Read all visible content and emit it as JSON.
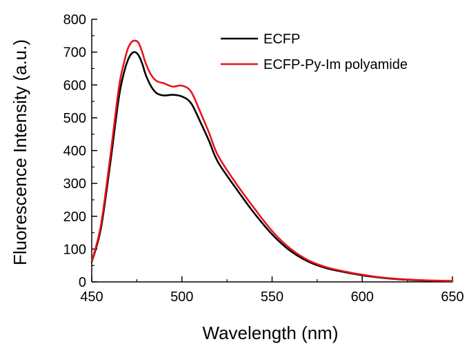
{
  "chart_data": {
    "type": "line",
    "title": "",
    "xlabel": "Wavelength (nm)",
    "ylabel": "Fluorescence Intensity (a.u.)",
    "xlim": [
      450,
      650
    ],
    "ylim": [
      0,
      800
    ],
    "xticks": [
      450,
      500,
      550,
      600,
      650
    ],
    "yticks": [
      0,
      100,
      200,
      300,
      400,
      500,
      600,
      700,
      800
    ],
    "grid": false,
    "legend_position": "top-right",
    "series": [
      {
        "name": "ECFP",
        "color": "#000000",
        "x": [
          450,
          455,
          460,
          465,
          468,
          470,
          472,
          474,
          476,
          478,
          480,
          483,
          486,
          490,
          495,
          500,
          505,
          510,
          515,
          520,
          530,
          540,
          550,
          560,
          570,
          580,
          590,
          600,
          610,
          620,
          630,
          640,
          650
        ],
        "y": [
          60,
          160,
          350,
          560,
          640,
          675,
          695,
          700,
          690,
          665,
          630,
          595,
          575,
          568,
          570,
          565,
          545,
          490,
          430,
          365,
          285,
          210,
          145,
          95,
          62,
          42,
          30,
          20,
          13,
          8,
          5,
          3,
          2
        ]
      },
      {
        "name": "ECFP-Py-Im polyamide",
        "color": "#e8141b",
        "x": [
          450,
          455,
          460,
          465,
          468,
          470,
          472,
          474,
          476,
          478,
          480,
          483,
          486,
          490,
          495,
          500,
          505,
          510,
          515,
          520,
          530,
          540,
          550,
          560,
          570,
          580,
          590,
          600,
          610,
          620,
          630,
          640,
          650
        ],
        "y": [
          62,
          170,
          370,
          590,
          670,
          710,
          730,
          735,
          728,
          700,
          665,
          630,
          612,
          605,
          595,
          598,
          580,
          520,
          455,
          385,
          300,
          225,
          155,
          102,
          66,
          45,
          32,
          22,
          14,
          9,
          6,
          4,
          3
        ]
      }
    ]
  }
}
